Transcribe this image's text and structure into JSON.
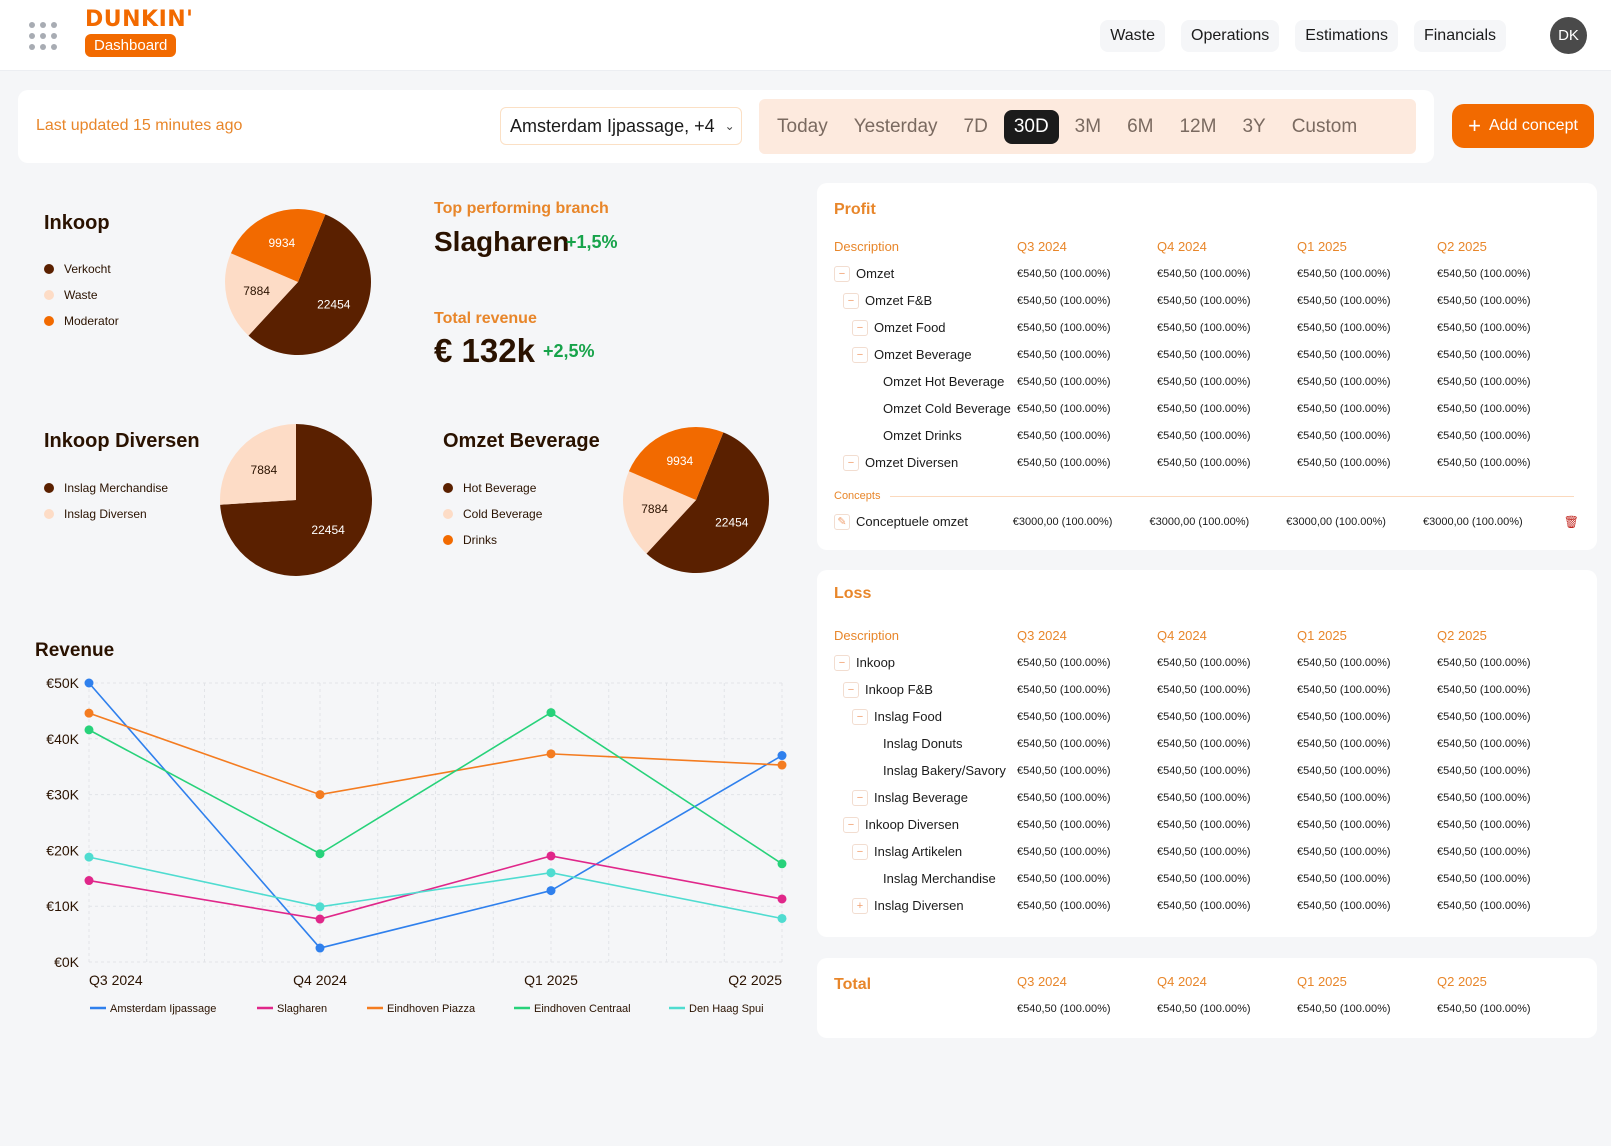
{
  "brand": {
    "name": "DUNKIN'",
    "section": "Dashboard"
  },
  "nav": {
    "items": [
      "Waste",
      "Operations",
      "Estimations",
      "Financials"
    ],
    "avatar": "DK"
  },
  "filters": {
    "updated": "Last updated 15 minutes ago",
    "location": "Amsterdam Ijpassage, +4",
    "ranges": [
      "Today",
      "Yesterday",
      "7D",
      "30D",
      "3M",
      "6M",
      "12M",
      "3Y",
      "Custom"
    ],
    "active_range": "30D",
    "add_label": "Add concept"
  },
  "colors": {
    "dark": "#5a2000",
    "light": "#fddcc6",
    "orange": "#f26a00",
    "accent": "#e8862a",
    "positive": "#17a34a"
  },
  "pies": {
    "inkoop": {
      "title": "Inkoop",
      "legend": [
        "Verkocht",
        "Waste",
        "Moderator"
      ],
      "slices": [
        {
          "label": "22454",
          "value": 22454,
          "color": "#5a2000"
        },
        {
          "label": "7884",
          "value": 7884,
          "color": "#fddcc6"
        },
        {
          "label": "9934",
          "value": 9934,
          "color": "#f26a00"
        }
      ]
    },
    "inkoop_diversen": {
      "title": "Inkoop Diversen",
      "legend": [
        "Inslag Merchandise",
        "Inslag Diversen"
      ],
      "slices": [
        {
          "label": "22454",
          "value": 22454,
          "color": "#5a2000"
        },
        {
          "label": "7884",
          "value": 7884,
          "color": "#fddcc6"
        }
      ]
    },
    "omzet_beverage": {
      "title": "Omzet Beverage",
      "legend": [
        "Hot Beverage",
        "Cold Beverage",
        "Drinks"
      ],
      "slices": [
        {
          "label": "22454",
          "value": 22454,
          "color": "#5a2000"
        },
        {
          "label": "7884",
          "value": 7884,
          "color": "#fddcc6"
        },
        {
          "label": "9934",
          "value": 9934,
          "color": "#f26a00"
        }
      ]
    }
  },
  "kpis": {
    "top_branch_label": "Top performing branch",
    "top_branch": "Slagharen",
    "top_branch_delta": "+1,5%",
    "revenue_label": "Total revenue",
    "revenue": "€ 132k",
    "revenue_delta": "+2,5%"
  },
  "chart_data": {
    "type": "line",
    "title": "Revenue",
    "x": [
      "Q3 2024",
      "Q4 2024",
      "Q1 2025",
      "Q2 2025"
    ],
    "yticks": [
      "€0K",
      "€10K",
      "€20K",
      "€30K",
      "€40K",
      "€50K"
    ],
    "ylim": [
      0,
      50000
    ],
    "grid": true,
    "legend_position": "bottom",
    "series": [
      {
        "name": "Amsterdam Ijpassage",
        "color": "#2f80ed",
        "values": [
          50000,
          2500,
          12800,
          37000
        ]
      },
      {
        "name": "Slagharen",
        "color": "#e0278a",
        "values": [
          14600,
          7700,
          19000,
          11300
        ]
      },
      {
        "name": "Eindhoven Piazza",
        "color": "#f47c20",
        "values": [
          44600,
          30000,
          37300,
          35300
        ]
      },
      {
        "name": "Eindhoven Centraal",
        "color": "#27d27a",
        "values": [
          41600,
          19400,
          44700,
          17600
        ]
      },
      {
        "name": "Den Haag Spui",
        "color": "#4fdcd0",
        "values": [
          18800,
          9900,
          16000,
          7800
        ]
      }
    ]
  },
  "profit": {
    "title": "Profit",
    "headers": [
      "Description",
      "Q3 2024",
      "Q4 2024",
      "Q1 2025",
      "Q2 2025"
    ],
    "rows": [
      {
        "label": "Omzet",
        "level": 0,
        "toggle": "−",
        "values": [
          "€540,50 (100.00%)",
          "€540,50 (100.00%)",
          "€540,50 (100.00%)",
          "€540,50 (100.00%)"
        ]
      },
      {
        "label": "Omzet F&B",
        "level": 1,
        "toggle": "−",
        "values": [
          "€540,50 (100.00%)",
          "€540,50 (100.00%)",
          "€540,50 (100.00%)",
          "€540,50 (100.00%)"
        ]
      },
      {
        "label": "Omzet Food",
        "level": 2,
        "toggle": "−",
        "values": [
          "€540,50 (100.00%)",
          "€540,50 (100.00%)",
          "€540,50 (100.00%)",
          "€540,50 (100.00%)"
        ]
      },
      {
        "label": "Omzet Beverage",
        "level": 2,
        "toggle": "−",
        "values": [
          "€540,50 (100.00%)",
          "€540,50 (100.00%)",
          "€540,50 (100.00%)",
          "€540,50 (100.00%)"
        ]
      },
      {
        "label": "Omzet Hot Beverage",
        "level": 3,
        "toggle": "",
        "values": [
          "€540,50 (100.00%)",
          "€540,50 (100.00%)",
          "€540,50 (100.00%)",
          "€540,50 (100.00%)"
        ]
      },
      {
        "label": "Omzet Cold Beverage",
        "level": 3,
        "toggle": "",
        "values": [
          "€540,50 (100.00%)",
          "€540,50 (100.00%)",
          "€540,50 (100.00%)",
          "€540,50 (100.00%)"
        ]
      },
      {
        "label": "Omzet Drinks",
        "level": 3,
        "toggle": "",
        "values": [
          "€540,50 (100.00%)",
          "€540,50 (100.00%)",
          "€540,50 (100.00%)",
          "€540,50 (100.00%)"
        ]
      },
      {
        "label": "Omzet Diversen",
        "level": 1,
        "toggle": "−",
        "values": [
          "€540,50 (100.00%)",
          "€540,50 (100.00%)",
          "€540,50 (100.00%)",
          "€540,50 (100.00%)"
        ]
      }
    ],
    "concepts_label": "Concepts",
    "concept_row": {
      "label": "Conceptuele omzet",
      "values": [
        "€3000,00 (100.00%)",
        "€3000,00 (100.00%)",
        "€3000,00 (100.00%)",
        "€3000,00 (100.00%)"
      ]
    }
  },
  "loss": {
    "title": "Loss",
    "headers": [
      "Description",
      "Q3 2024",
      "Q4 2024",
      "Q1 2025",
      "Q2 2025"
    ],
    "rows": [
      {
        "label": "Inkoop",
        "level": 0,
        "toggle": "−",
        "values": [
          "€540,50 (100.00%)",
          "€540,50 (100.00%)",
          "€540,50 (100.00%)",
          "€540,50 (100.00%)"
        ]
      },
      {
        "label": "Inkoop F&B",
        "level": 1,
        "toggle": "−",
        "values": [
          "€540,50 (100.00%)",
          "€540,50 (100.00%)",
          "€540,50 (100.00%)",
          "€540,50 (100.00%)"
        ]
      },
      {
        "label": "Inslag Food",
        "level": 2,
        "toggle": "−",
        "values": [
          "€540,50 (100.00%)",
          "€540,50 (100.00%)",
          "€540,50 (100.00%)",
          "€540,50 (100.00%)"
        ]
      },
      {
        "label": "Inslag Donuts",
        "level": 3,
        "toggle": "",
        "values": [
          "€540,50 (100.00%)",
          "€540,50 (100.00%)",
          "€540,50 (100.00%)",
          "€540,50 (100.00%)"
        ]
      },
      {
        "label": "Inslag Bakery/Savory",
        "level": 3,
        "toggle": "",
        "values": [
          "€540,50 (100.00%)",
          "€540,50 (100.00%)",
          "€540,50 (100.00%)",
          "€540,50 (100.00%)"
        ]
      },
      {
        "label": "Inslag Beverage",
        "level": 2,
        "toggle": "−",
        "values": [
          "€540,50 (100.00%)",
          "€540,50 (100.00%)",
          "€540,50 (100.00%)",
          "€540,50 (100.00%)"
        ]
      },
      {
        "label": "Inkoop Diversen",
        "level": 1,
        "toggle": "−",
        "values": [
          "€540,50 (100.00%)",
          "€540,50 (100.00%)",
          "€540,50 (100.00%)",
          "€540,50 (100.00%)"
        ]
      },
      {
        "label": "Inslag Artikelen",
        "level": 2,
        "toggle": "−",
        "values": [
          "€540,50 (100.00%)",
          "€540,50 (100.00%)",
          "€540,50 (100.00%)",
          "€540,50 (100.00%)"
        ]
      },
      {
        "label": "Inslag Merchandise",
        "level": 3,
        "toggle": "",
        "values": [
          "€540,50 (100.00%)",
          "€540,50 (100.00%)",
          "€540,50 (100.00%)",
          "€540,50 (100.00%)"
        ]
      },
      {
        "label": "Inslag Diversen",
        "level": 2,
        "toggle": "+",
        "values": [
          "€540,50 (100.00%)",
          "€540,50 (100.00%)",
          "€540,50 (100.00%)",
          "€540,50 (100.00%)"
        ]
      }
    ]
  },
  "total": {
    "title": "Total",
    "headers": [
      "Q3 2024",
      "Q4 2024",
      "Q1 2025",
      "Q2 2025"
    ],
    "values": [
      "€540,50 (100.00%)",
      "€540,50 (100.00%)",
      "€540,50 (100.00%)",
      "€540,50 (100.00%)"
    ]
  }
}
